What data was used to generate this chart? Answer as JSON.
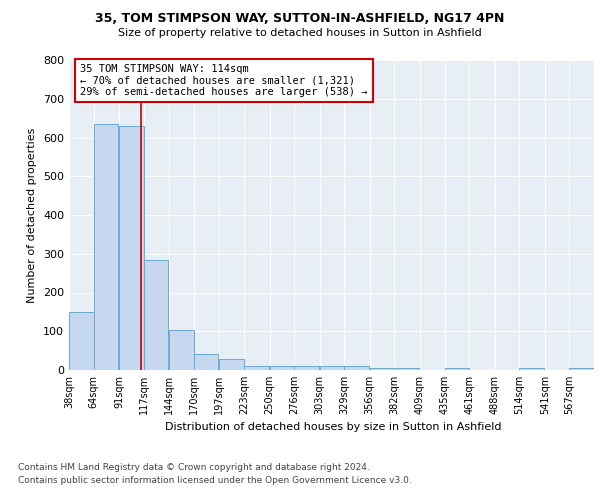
{
  "title1": "35, TOM STIMPSON WAY, SUTTON-IN-ASHFIELD, NG17 4PN",
  "title2": "Size of property relative to detached houses in Sutton in Ashfield",
  "xlabel": "Distribution of detached houses by size in Sutton in Ashfield",
  "ylabel": "Number of detached properties",
  "footnote1": "Contains HM Land Registry data © Crown copyright and database right 2024.",
  "footnote2": "Contains public sector information licensed under the Open Government Licence v3.0.",
  "annotation_line1": "35 TOM STIMPSON WAY: 114sqm",
  "annotation_line2": "← 70% of detached houses are smaller (1,321)",
  "annotation_line3": "29% of semi-detached houses are larger (538) →",
  "property_size": 114,
  "bin_edges": [
    38,
    64,
    91,
    117,
    144,
    170,
    197,
    223,
    250,
    276,
    303,
    329,
    356,
    382,
    409,
    435,
    461,
    488,
    514,
    541,
    567
  ],
  "bar_heights": [
    150,
    635,
    630,
    285,
    103,
    42,
    28,
    10,
    10,
    10,
    10,
    10,
    5,
    5,
    0,
    5,
    0,
    0,
    5,
    0,
    5
  ],
  "bar_color": "#c5d8ef",
  "bar_edge_color": "#6aaad4",
  "marker_color": "#cc0000",
  "background_color": "#ffffff",
  "plot_bg_color": "#e8eef5",
  "grid_color": "#ffffff",
  "ylim": [
    0,
    800
  ],
  "yticks": [
    0,
    100,
    200,
    300,
    400,
    500,
    600,
    700,
    800
  ]
}
